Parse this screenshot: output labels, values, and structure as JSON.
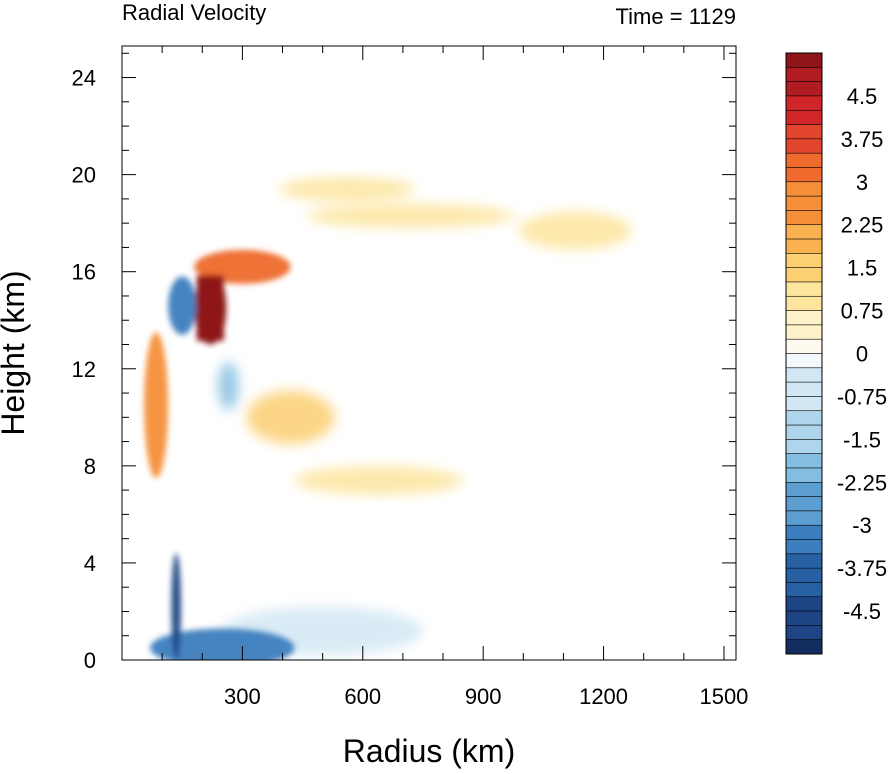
{
  "chart_data": {
    "type": "heatmap",
    "title": "Radial Velocity",
    "subtitle": "Time = 1129",
    "xlabel": "Radius (km)",
    "ylabel": "Height (km)",
    "xlim": [
      0,
      1530
    ],
    "ylim": [
      0,
      25.3
    ],
    "x_ticks": [
      300,
      600,
      900,
      1200,
      1500
    ],
    "x_tick_labels": [
      "300",
      "600",
      "900",
      "1200",
      "1500"
    ],
    "y_ticks": [
      0,
      4,
      8,
      12,
      16,
      20,
      24
    ],
    "y_tick_labels": [
      "0",
      "4",
      "8",
      "12",
      "16",
      "20",
      "24"
    ],
    "colorbar": {
      "min": -5.25,
      "max": 5.25,
      "step": 0.25,
      "tick_values": [
        4.5,
        3.75,
        3,
        2.25,
        1.5,
        0.75,
        0,
        -0.75,
        -1.5,
        -2.25,
        -3,
        -3.75,
        -4.5
      ],
      "tick_labels": [
        "4.5",
        "3.75",
        "3",
        "2.25",
        "1.5",
        "0.75",
        "0",
        "-0.75",
        "-1.5",
        "-2.25",
        "-3",
        "-3.75",
        "-4.5"
      ],
      "colors_high": [
        "#8e1518",
        "#b01c22",
        "#d0262a",
        "#e2452e",
        "#ee6a2d",
        "#f58f3a",
        "#f9b24f",
        "#fccf72",
        "#fde59e",
        "#fef2c8",
        "#fffaf0"
      ],
      "colors_low": [
        "#f2f8fc",
        "#d2e7f3",
        "#aed5ec",
        "#83bde1",
        "#5c9ed0",
        "#3b7dbd",
        "#2860a4",
        "#1d4584",
        "#142d5f"
      ]
    },
    "features": [
      {
        "name": "outflow jet core",
        "x": 220,
        "y": 14.5,
        "rx": 40,
        "ry": 1.5,
        "value": 5.0
      },
      {
        "name": "upper outflow",
        "x": 300,
        "y": 16.2,
        "rx": 120,
        "ry": 0.7,
        "value": 3.0
      },
      {
        "name": "upper outflow streak 1",
        "x": 560,
        "y": 19.4,
        "rx": 170,
        "ry": 0.5,
        "value": 1.2
      },
      {
        "name": "upper outflow streak 2",
        "x": 720,
        "y": 18.3,
        "rx": 260,
        "ry": 0.5,
        "value": 1.0
      },
      {
        "name": "upper outflow far",
        "x": 1130,
        "y": 17.7,
        "rx": 140,
        "ry": 0.8,
        "value": 1.2
      },
      {
        "name": "mid-level outflow",
        "x": 420,
        "y": 10.0,
        "rx": 110,
        "ry": 1.1,
        "value": 1.5
      },
      {
        "name": "mid-level outflow east",
        "x": 640,
        "y": 7.4,
        "rx": 210,
        "ry": 0.6,
        "value": 1.1
      },
      {
        "name": "eyewall outflow bands",
        "x": 85,
        "y": 10.5,
        "rx": 30,
        "ry": 3.0,
        "value": 2.6
      },
      {
        "name": "upper inflow",
        "x": 150,
        "y": 14.6,
        "rx": 35,
        "ry": 1.2,
        "value": -3.0
      },
      {
        "name": "mid inflow",
        "x": 265,
        "y": 11.3,
        "rx": 25,
        "ry": 1.0,
        "value": -1.8
      },
      {
        "name": "low-level inflow",
        "x": 250,
        "y": 0.5,
        "rx": 180,
        "ry": 0.8,
        "value": -3.5
      },
      {
        "name": "boundary layer inflow",
        "x": 500,
        "y": 1.2,
        "rx": 250,
        "ry": 1.0,
        "value": -0.9
      },
      {
        "name": "low-level inflow core",
        "x": 135,
        "y": 2.2,
        "rx": 12,
        "ry": 2.2,
        "value": -4.5
      }
    ]
  }
}
